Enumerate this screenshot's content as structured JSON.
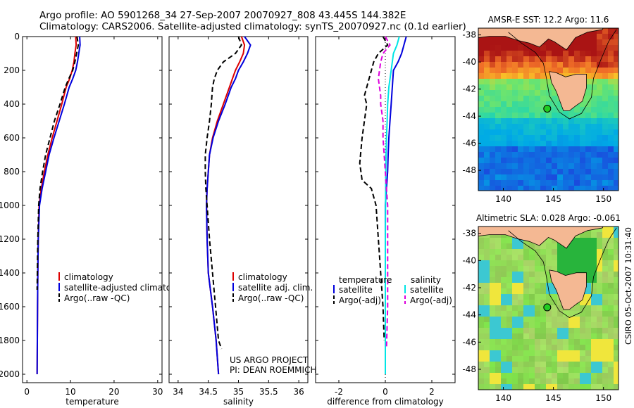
{
  "title_line1": "Argo profile: AO 5901268_34 27-Sep-2007 20070927_808 43.445S 144.382E",
  "title_line2": "Climatology: CARS2006. Satellite-adjusted climatology: synTS_20070927.nc (0.1d earlier)",
  "credit": "CSIRO 05-Oct-2007 10:31:40",
  "colors": {
    "climatology": "#dd0000",
    "satellite": "#0000dd",
    "argo": "#000000",
    "salinity_satellite": "#00e5e5",
    "salinity_argo": "#dd00dd"
  },
  "chart_data": [
    {
      "type": "line",
      "xlabel": "temperature",
      "xlim": [
        -1,
        31
      ],
      "xticks": [
        0,
        10,
        20,
        30
      ],
      "ylim": [
        2050,
        0
      ],
      "yticks": [
        0,
        200,
        400,
        600,
        800,
        1000,
        1200,
        1400,
        1600,
        1800,
        2000
      ],
      "legend": [
        "climatology",
        "satellite-adjusted climatology",
        "Argo(..raw -QC)"
      ],
      "series": [
        {
          "name": "climatology",
          "color": "#dd0000",
          "dash": "",
          "x": [
            11.2,
            11.3,
            11.0,
            10.8,
            10.4,
            9.8,
            9.0,
            8.0,
            6.9,
            5.8,
            4.8,
            4.0,
            3.3,
            2.8,
            2.6,
            2.5,
            2.45,
            2.4,
            2.35
          ],
          "y": [
            0,
            50,
            100,
            150,
            200,
            250,
            300,
            400,
            500,
            600,
            700,
            800,
            900,
            1000,
            1200,
            1400,
            1600,
            1800,
            2000
          ]
        },
        {
          "name": "satellite-adjusted climatology",
          "color": "#0000dd",
          "dash": "",
          "x": [
            12.1,
            12.2,
            11.9,
            11.6,
            11.2,
            10.5,
            9.7,
            8.6,
            7.4,
            6.2,
            5.1,
            4.3,
            3.5,
            2.9,
            2.6,
            2.5,
            2.45,
            2.4,
            2.35
          ],
          "y": [
            0,
            50,
            100,
            150,
            200,
            250,
            300,
            400,
            500,
            600,
            700,
            800,
            900,
            1000,
            1200,
            1400,
            1600,
            1800,
            2000
          ]
        },
        {
          "name": "Argo(..raw -QC)",
          "color": "#000000",
          "dash": "7,4",
          "x": [
            11.5,
            11.8,
            11.4,
            11.0,
            10.5,
            9.6,
            8.8,
            7.6,
            6.3,
            5.3,
            4.3,
            3.6,
            3.0,
            2.7,
            2.5,
            2.4,
            2.35
          ],
          "y": [
            0,
            50,
            100,
            150,
            200,
            250,
            300,
            400,
            500,
            600,
            700,
            800,
            900,
            1000,
            1200,
            1400,
            1500
          ]
        }
      ]
    },
    {
      "type": "line",
      "xlabel": "salinity",
      "xlim": [
        33.85,
        36.15
      ],
      "xticks": [
        34,
        34.5,
        35,
        35.5,
        36
      ],
      "xticklabels": [
        "34",
        "34.5",
        "35",
        "35.5",
        "36"
      ],
      "ylim": [
        2050,
        0
      ],
      "legend": [
        "climatology",
        "satellite adj. clim.",
        "Argo(..raw -QC)"
      ],
      "annotation": [
        "US ARGO PROJECT",
        "PI: DEAN ROEMMICH"
      ],
      "series": [
        {
          "name": "climatology",
          "color": "#dd0000",
          "dash": "",
          "x": [
            35.05,
            35.1,
            35.08,
            35.02,
            34.95,
            34.9,
            34.85,
            34.75,
            34.65,
            34.57,
            34.52,
            34.5,
            34.48,
            34.47,
            34.48,
            34.5,
            34.57,
            34.63,
            34.67
          ],
          "y": [
            0,
            50,
            100,
            150,
            200,
            250,
            300,
            400,
            500,
            600,
            700,
            800,
            900,
            1000,
            1200,
            1400,
            1600,
            1800,
            2000
          ]
        },
        {
          "name": "satellite adj. clim.",
          "color": "#0000dd",
          "dash": "",
          "x": [
            35.1,
            35.2,
            35.15,
            35.08,
            35.0,
            34.95,
            34.88,
            34.78,
            34.67,
            34.58,
            34.52,
            34.5,
            34.48,
            34.47,
            34.48,
            34.5,
            34.57,
            34.63,
            34.67
          ],
          "y": [
            0,
            50,
            100,
            150,
            200,
            250,
            300,
            400,
            500,
            600,
            700,
            800,
            900,
            1000,
            1200,
            1400,
            1600,
            1800,
            2000
          ]
        },
        {
          "name": "Argo(..raw -QC)",
          "color": "#000000",
          "dash": "7,4",
          "x": [
            35.0,
            35.05,
            34.95,
            34.75,
            34.65,
            34.6,
            34.57,
            34.55,
            34.52,
            34.48,
            34.45,
            34.45,
            34.46,
            34.48,
            34.52,
            34.57,
            34.62,
            34.67,
            34.72
          ],
          "y": [
            0,
            50,
            100,
            150,
            200,
            250,
            300,
            400,
            500,
            600,
            700,
            800,
            900,
            1000,
            1200,
            1400,
            1600,
            1800,
            1850
          ]
        }
      ]
    },
    {
      "type": "line",
      "xlabel": "difference from climatology",
      "xlim": [
        -3,
        3
      ],
      "xticks": [
        -2,
        0,
        2
      ],
      "ylim": [
        2050,
        0
      ],
      "legend_left_title": "temperature",
      "legend_right_title": "salinity",
      "legend_left": [
        "satellite",
        "Argo(-adj)"
      ],
      "legend_right": [
        "satellite",
        "Argo(-adj)"
      ],
      "series": [
        {
          "name": "temperature satellite",
          "color": "#0000dd",
          "dash": "",
          "x": [
            0.9,
            0.8,
            0.7,
            0.55,
            0.35,
            0.3,
            0.25,
            0.2,
            0.15,
            0.12,
            0.1,
            0.05,
            0.0,
            0.0,
            0.0,
            0.0,
            0.0,
            0.0
          ],
          "y": [
            0,
            50,
            100,
            150,
            200,
            300,
            400,
            500,
            600,
            700,
            800,
            900,
            1000,
            1200,
            1400,
            1600,
            1800,
            2000
          ]
        },
        {
          "name": "temperature Argo(-adj)",
          "color": "#000000",
          "dash": "7,4",
          "x": [
            -0.1,
            0.1,
            -0.3,
            -0.5,
            -0.7,
            -0.9,
            -0.8,
            -0.9,
            -1.0,
            -1.1,
            -1.0,
            -0.6,
            -0.4,
            -0.3,
            -0.2,
            -0.1,
            -0.05
          ],
          "y": [
            0,
            50,
            100,
            150,
            250,
            350,
            400,
            500,
            600,
            750,
            850,
            900,
            1000,
            1200,
            1400,
            1600,
            1800
          ]
        },
        {
          "name": "salinity satellite",
          "color": "#00e5e5",
          "dash": "",
          "x": [
            0.6,
            0.5,
            0.35,
            0.25,
            0.15,
            0.1,
            0.08,
            0.05,
            0.03,
            0.02,
            0.01,
            0.0,
            0.0,
            0.0,
            0.0
          ],
          "y": [
            0,
            50,
            100,
            200,
            300,
            400,
            500,
            600,
            700,
            800,
            1000,
            1200,
            1400,
            1700,
            2000
          ]
        },
        {
          "name": "salinity Argo(-adj)",
          "color": "#dd00dd",
          "dash": "7,4",
          "x": [
            0.0,
            0.2,
            -0.1,
            -0.2,
            -0.3,
            -0.2,
            -0.2,
            -0.1,
            -0.1,
            0.0,
            0.05,
            0.1,
            0.1,
            0.1,
            0.05
          ],
          "y": [
            0,
            50,
            100,
            150,
            250,
            350,
            400,
            500,
            600,
            800,
            900,
            1000,
            1200,
            1600,
            1850
          ]
        }
      ]
    },
    {
      "type": "heatmap",
      "title": "AMSR-E SST: 12.2 Argo: 11.6",
      "xlim": [
        137.5,
        151.5
      ],
      "ylim": [
        -49.5,
        -37.5
      ],
      "xticks": [
        140,
        145,
        150
      ],
      "yticks": [
        -38,
        -40,
        -42,
        -44,
        -46,
        -48
      ],
      "yticklabels": [
        "-38",
        "-40",
        "-42",
        "-44",
        "-46",
        "-48"
      ],
      "argo_position": [
        144.382,
        -43.445
      ]
    },
    {
      "type": "heatmap",
      "title": "Altimetric SLA: 0.028 Argo: -0.061",
      "xlim": [
        137.5,
        151.5
      ],
      "ylim": [
        -49.5,
        -37.5
      ],
      "xticks": [
        140,
        145,
        150
      ],
      "yticks": [
        -38,
        -40,
        -42,
        -44,
        -46,
        -48
      ],
      "yticklabels": [
        "-38",
        "-40",
        "-42",
        "-44",
        "-46",
        "-48"
      ],
      "argo_position": [
        144.382,
        -43.445
      ]
    }
  ]
}
